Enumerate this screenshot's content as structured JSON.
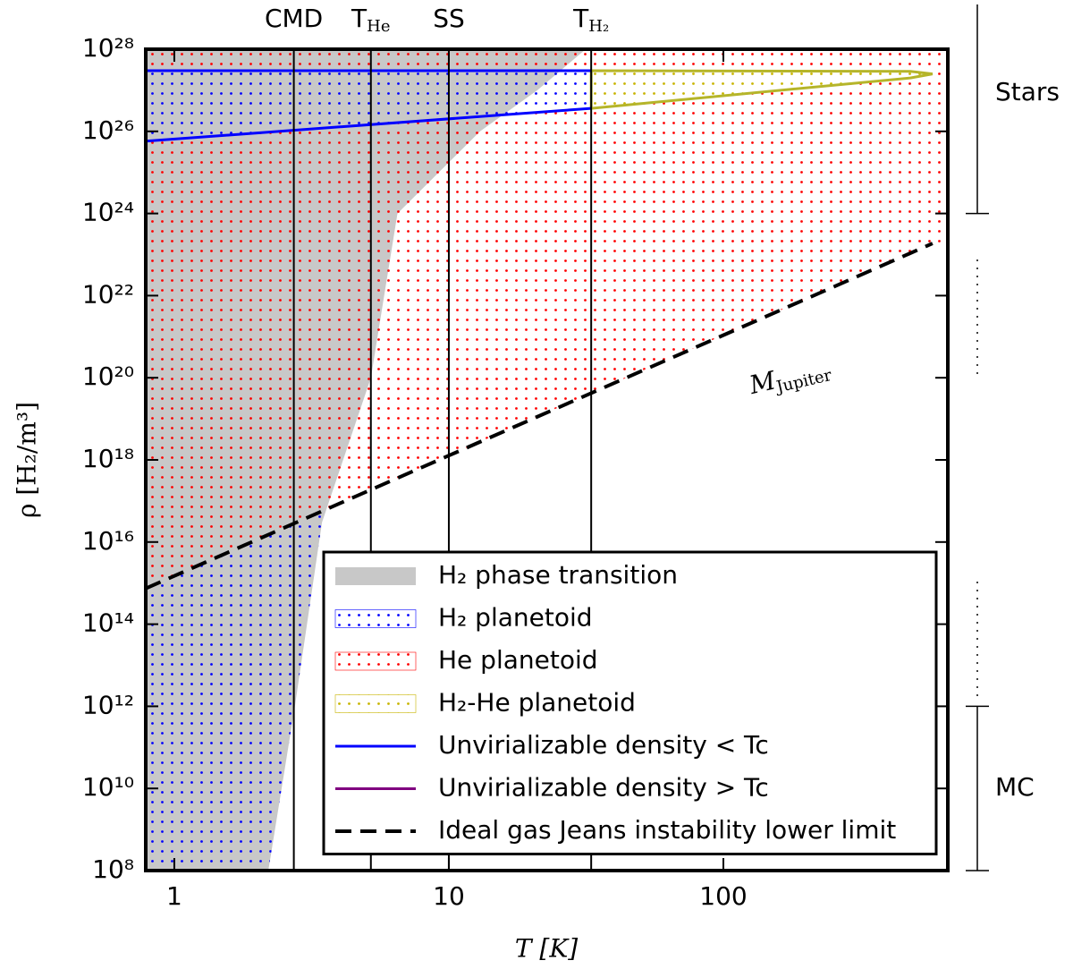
{
  "chart_data": {
    "type": "region",
    "xlabel": "T [K]",
    "ylabel": "ρ [H₂/m³]",
    "xscale": "log",
    "yscale": "log",
    "xlim": [
      0.787,
      657
    ],
    "ylim": [
      100000000.0,
      1e+28
    ],
    "xticks": [
      1,
      10,
      100
    ],
    "yticks": [
      {
        "value": 100000000.0,
        "label": "10⁸"
      },
      {
        "value": 10000000000.0,
        "label": "10¹⁰"
      },
      {
        "value": 1000000000000.0,
        "label": "10¹²"
      },
      {
        "value": 100000000000000.0,
        "label": "10¹⁴"
      },
      {
        "value": 1e+16,
        "label": "10¹⁶"
      },
      {
        "value": 1e+18,
        "label": "10¹⁸"
      },
      {
        "value": 1e+20,
        "label": "10²⁰"
      },
      {
        "value": 1e+22,
        "label": "10²²"
      },
      {
        "value": 1e+24,
        "label": "10²⁴"
      },
      {
        "value": 1e+26,
        "label": "10²⁶"
      },
      {
        "value": 1e+28,
        "label": "10²⁸"
      }
    ],
    "regions": [
      {
        "name": "H₂ phase transition",
        "color": "#c8c8c8",
        "fill": "solid",
        "polygons": [
          {
            "x": [
              0.787,
              2.2,
              2.75,
              3.45,
              5.2,
              6.5,
              13,
              21,
              31.5,
              0.787
            ],
            "y": [
              100000000.0,
              100000000.0,
              1000000000000.0,
              3e+16,
              1e+20,
              1e+24,
              1e+26,
              1e+27,
              1e+28,
              1e+28
            ]
          }
        ]
      },
      {
        "name": "He planetoid",
        "color": "#ff0000",
        "fill": "dots",
        "polygons": [
          {
            "x": [
              0.787,
              578,
              657,
              657,
              0.787
            ],
            "y": [
              740000000000000.0,
              1.86e+23,
              1.86e+23,
              1e+28,
              1e+28
            ]
          },
          {
            "x": [
              0.787,
              33,
              33,
              0.787
            ],
            "y": [
              5.75e+25,
              3.63e+26,
              3e+27,
              3e+27
            ]
          },
          {
            "x": [
              33,
              480,
              578,
              480,
              33
            ],
            "y": [
              3.63e+26,
              2e+27,
              2.5e+27,
              2.9e+27,
              3e+27
            ]
          }
        ]
      },
      {
        "name": "H₂ planetoid",
        "color": "#0000ff",
        "fill": "dots",
        "polygons": [
          {
            "x": [
              0.787,
              2.2,
              2.75,
              3.45,
              3.55,
              0.787
            ],
            "y": [
              100000000.0,
              100000000.0,
              1000000000000.0,
              3e+16,
              6.3e+16,
              740000000000000.0
            ]
          },
          {
            "x": [
              0.787,
              33,
              33,
              0.787
            ],
            "y": [
              5.75e+25,
              3.63e+26,
              3e+27,
              3e+27
            ]
          }
        ]
      },
      {
        "name": "H₂-He planetoid",
        "color": "#c8b400",
        "fill": "dots",
        "outline": "#b5b52a",
        "polygons": [
          {
            "x": [
              33,
              480,
              578,
              480,
              33
            ],
            "y": [
              3.63e+26,
              2e+27,
              2.5e+27,
              2.9e+27,
              3e+27
            ]
          }
        ]
      }
    ],
    "series": [
      {
        "name": "Unvirializable density < Tc",
        "color": "#0000ff",
        "style": "solid",
        "x": [
          0.787,
          33,
          null,
          0.787,
          33
        ],
        "y": [
          3e+27,
          3e+27,
          null,
          5.75e+25,
          3.63e+26
        ]
      },
      {
        "name": "Unvirializable density > Tc",
        "color": "#800080",
        "style": "solid",
        "x": [],
        "y": []
      },
      {
        "name": "Ideal gas Jeans instability lower limit",
        "color": "#000000",
        "style": "dashed",
        "x": [
          0.787,
          578
        ],
        "y": [
          740000000000000.0,
          1.86e+23
        ]
      }
    ],
    "vlines": [
      {
        "label": "CMD",
        "x": 2.725
      },
      {
        "label": "T",
        "sub": "He",
        "x": 5.2
      },
      {
        "label": "SS",
        "x": 10
      },
      {
        "label": "T",
        "sub": "H₂",
        "x": 33
      }
    ],
    "annotation": {
      "text": "M",
      "sub": "Jupiter",
      "x": 175,
      "y": 1e+20
    },
    "side_brackets": [
      {
        "label": "Stars",
        "range": [
          1e+24,
          1e+28
        ]
      },
      {
        "label": "MC",
        "range": [
          100000000.0,
          1000000000000.0
        ]
      }
    ],
    "legend": "lower right"
  }
}
